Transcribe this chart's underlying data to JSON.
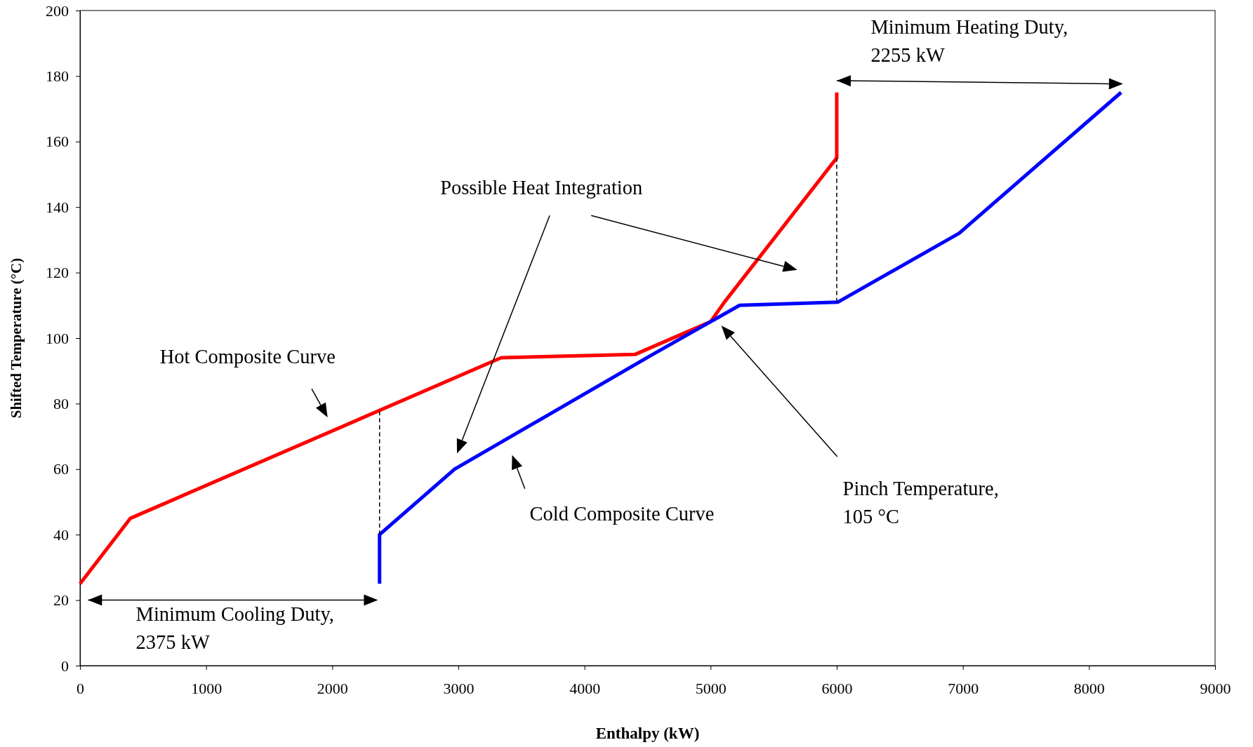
{
  "chart_data": {
    "type": "line",
    "xlabel": "Enthalpy (kW)",
    "ylabel": "Shifted Temperature (°C)",
    "xlim": [
      0,
      9000
    ],
    "xticks": [
      0,
      1000,
      2000,
      3000,
      4000,
      5000,
      6000,
      7000,
      8000,
      9000
    ],
    "ylim": [
      0,
      200
    ],
    "yticks": [
      0,
      20,
      40,
      60,
      80,
      100,
      120,
      140,
      160,
      180,
      200
    ],
    "series": [
      {
        "color": "#ff0000",
        "x": [
          0,
          400,
          3340,
          4400,
          5000,
          5110,
          6000,
          6000
        ],
        "values": [
          25,
          45,
          94,
          95,
          105,
          111,
          155,
          175
        ]
      },
      {
        "color": "#0000ff",
        "x": [
          2375,
          2375,
          2970,
          4540,
          5000,
          5230,
          6010,
          6970,
          8255
        ],
        "values": [
          25,
          40,
          60,
          95,
          105,
          110,
          111,
          132,
          175
        ]
      },
      {
        "color": "#000000",
        "line_style": "dashed",
        "x": [
          2375,
          2375
        ],
        "values": [
          40,
          78
        ]
      },
      {
        "color": "#000000",
        "line_style": "dashed",
        "x": [
          6000,
          6000
        ],
        "values": [
          111,
          155
        ]
      }
    ],
    "annotations": [
      "Hot Composite Curve",
      "Cold Composite Curve",
      "Possible Heat Integration",
      "Pinch Temperature, 105 °C",
      "Minimum Heating Duty, 2255 kW",
      "Minimum Cooling Duty, 2375 kW"
    ]
  }
}
